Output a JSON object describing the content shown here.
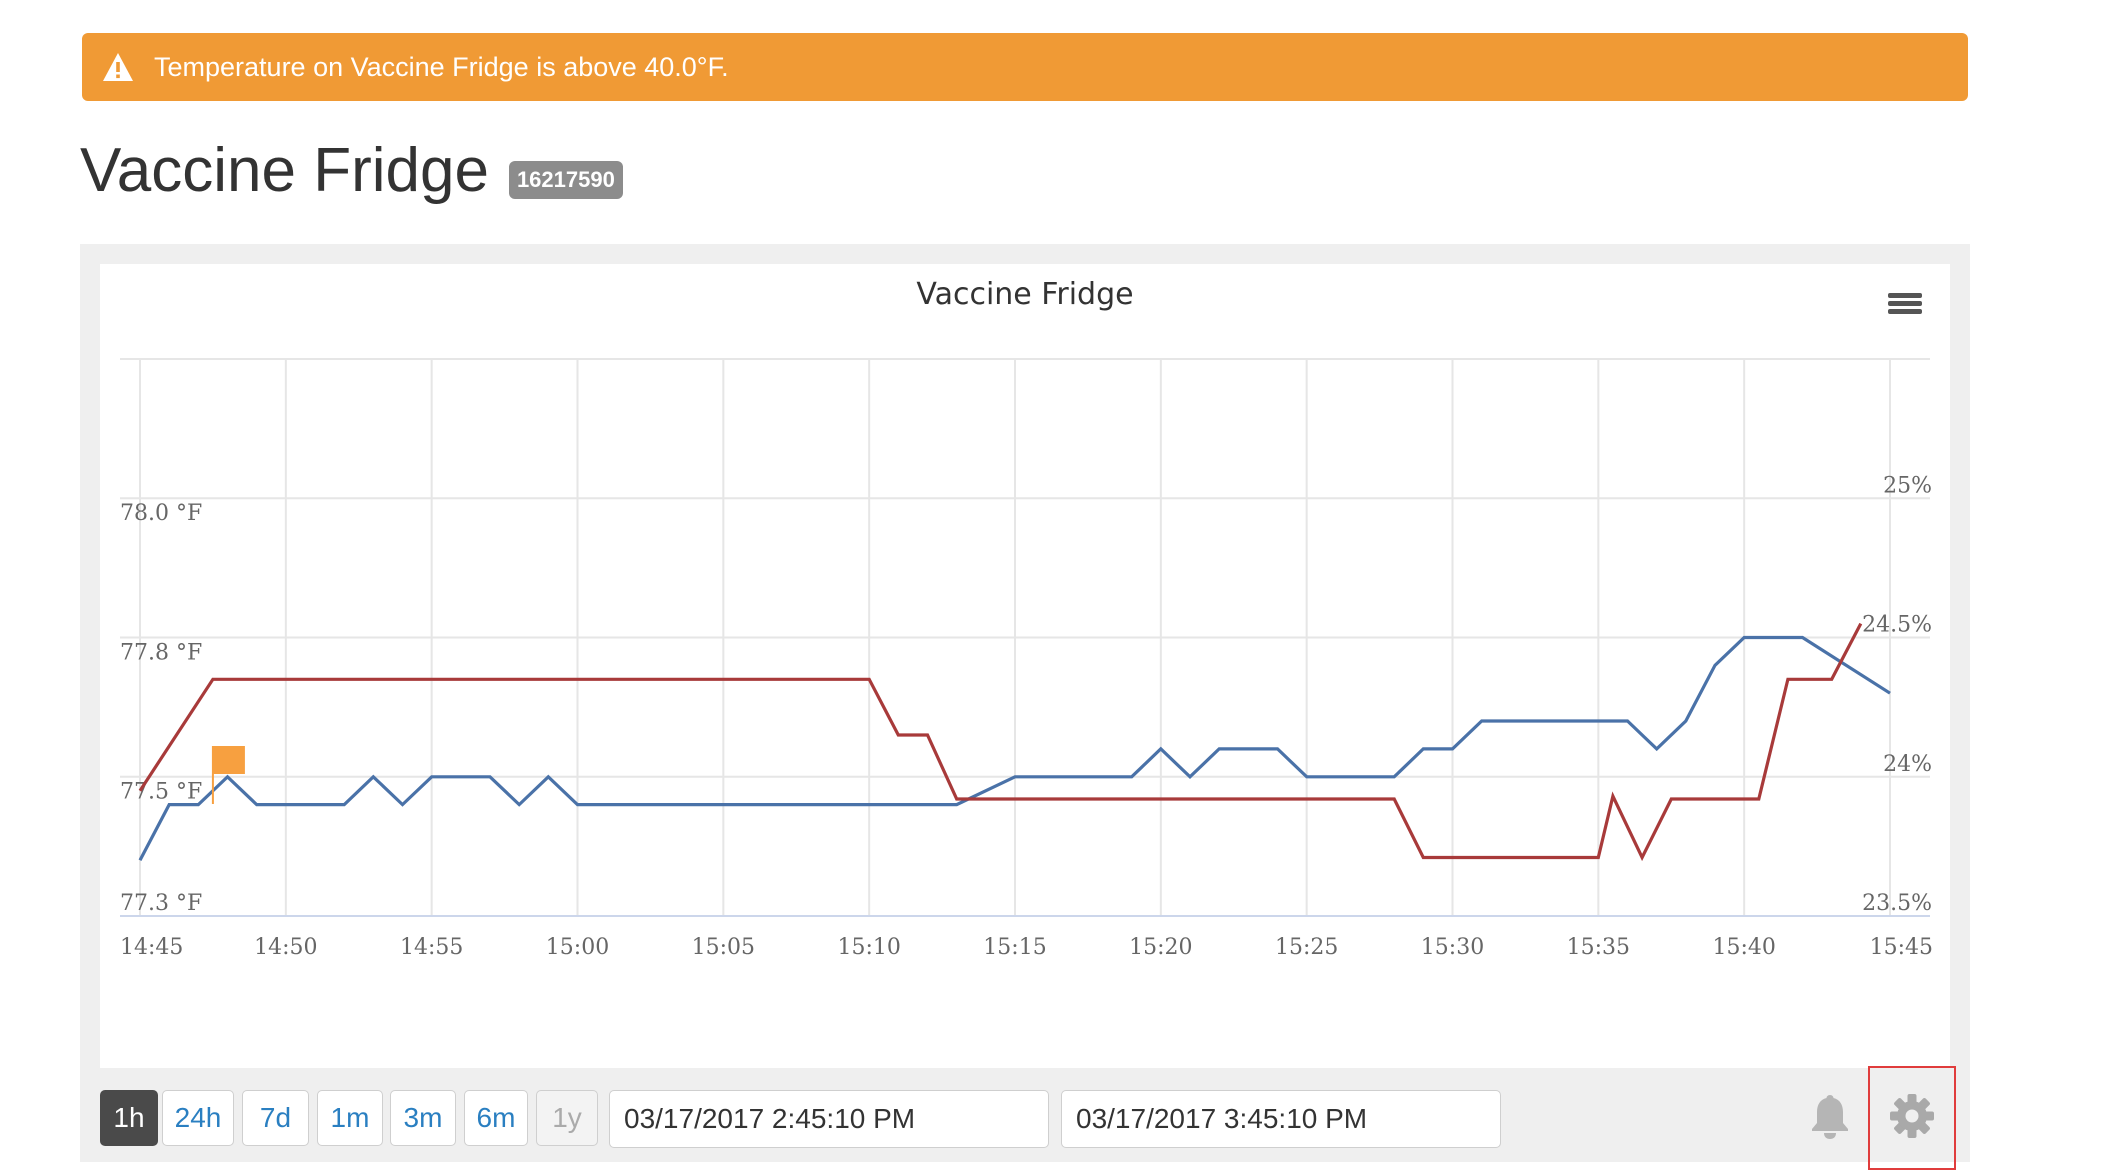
{
  "alert": {
    "icon": "warning-icon",
    "message": "Temperature on Vaccine Fridge is above 40.0°F.",
    "color": "#F09A35"
  },
  "device": {
    "name": "Vaccine Fridge",
    "serial": "16217590"
  },
  "chart_data": {
    "type": "line",
    "title": "Vaccine Fridge",
    "x_ticks": [
      "14:45",
      "14:50",
      "14:55",
      "15:00",
      "15:05",
      "15:10",
      "15:15",
      "15:20",
      "15:25",
      "15:30",
      "15:35",
      "15:40",
      "15:45"
    ],
    "y_left_ticks": [
      "77.3 °F",
      "77.5 °F",
      "77.8 °F",
      "78.0 °F"
    ],
    "y_left_values": [
      77.3,
      77.5,
      77.75,
      78.0
    ],
    "y_right_ticks": [
      "23.5%",
      "24%",
      "24.5%",
      "25%"
    ],
    "y_right_values": [
      23.5,
      24.0,
      24.5,
      25.0
    ],
    "ylim_left": [
      77.3,
      78.3
    ],
    "ylim_right": [
      23.5,
      25.5
    ],
    "grid": true,
    "legend": "none",
    "series": [
      {
        "color": "#4a72a8",
        "axis": "left",
        "points": [
          [
            0,
            77.4
          ],
          [
            1,
            77.5
          ],
          [
            2,
            77.5
          ],
          [
            3,
            77.55
          ],
          [
            4,
            77.5
          ],
          [
            5,
            77.5
          ],
          [
            6,
            77.5
          ],
          [
            7,
            77.5
          ],
          [
            8,
            77.55
          ],
          [
            9,
            77.5
          ],
          [
            10,
            77.55
          ],
          [
            11,
            77.55
          ],
          [
            12,
            77.55
          ],
          [
            13,
            77.5
          ],
          [
            14,
            77.55
          ],
          [
            15,
            77.5
          ],
          [
            16,
            77.5
          ],
          [
            28,
            77.5
          ],
          [
            30,
            77.55
          ],
          [
            32,
            77.55
          ],
          [
            34,
            77.55
          ],
          [
            35,
            77.6
          ],
          [
            36,
            77.55
          ],
          [
            37,
            77.6
          ],
          [
            39,
            77.6
          ],
          [
            40,
            77.55
          ],
          [
            43,
            77.55
          ],
          [
            44,
            77.6
          ],
          [
            45,
            77.6
          ],
          [
            46,
            77.65
          ],
          [
            51,
            77.65
          ],
          [
            52,
            77.6
          ],
          [
            53,
            77.65
          ],
          [
            54,
            77.75
          ],
          [
            55,
            77.8
          ],
          [
            57,
            77.8
          ],
          [
            60,
            77.7
          ]
        ]
      },
      {
        "color": "#a83a3a",
        "axis": "right",
        "points": [
          [
            0,
            23.95
          ],
          [
            2.5,
            24.35
          ],
          [
            25,
            24.35
          ],
          [
            26,
            24.15
          ],
          [
            27,
            24.15
          ],
          [
            28,
            23.92
          ],
          [
            43,
            23.92
          ],
          [
            44,
            23.71
          ],
          [
            50,
            23.71
          ],
          [
            50.5,
            23.93
          ],
          [
            51.5,
            23.71
          ],
          [
            52.5,
            23.92
          ],
          [
            55.5,
            23.92
          ],
          [
            56.5,
            24.35
          ],
          [
            58,
            24.35
          ],
          [
            59,
            24.55
          ]
        ]
      }
    ],
    "annotation_flag": {
      "x": 2.5,
      "color": "#F7A040"
    }
  },
  "chart_menu": {
    "icon": "hamburger-menu-icon"
  },
  "range_buttons": [
    {
      "label": "1h",
      "state": "active"
    },
    {
      "label": "24h",
      "state": "normal"
    },
    {
      "label": "7d",
      "state": "normal"
    },
    {
      "label": "1m",
      "state": "normal"
    },
    {
      "label": "3m",
      "state": "normal"
    },
    {
      "label": "6m",
      "state": "normal"
    },
    {
      "label": "1y",
      "state": "disabled"
    }
  ],
  "date_range": {
    "start": "03/17/2017 2:45:10 PM",
    "end": "03/17/2017 3:45:10 PM"
  },
  "toolbar": {
    "bell_icon": "bell-icon",
    "gear_icon": "gear-icon"
  }
}
